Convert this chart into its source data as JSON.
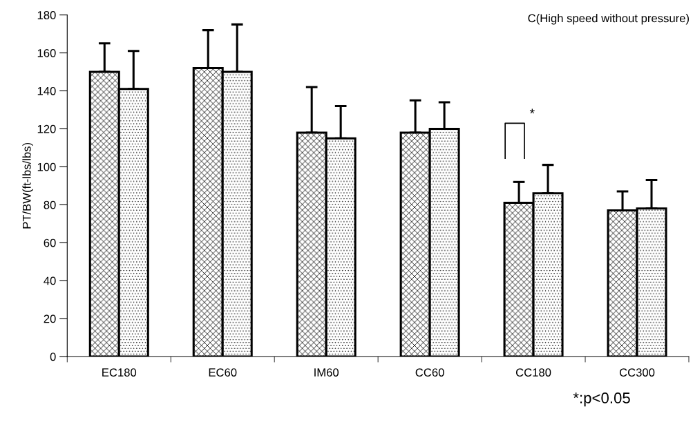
{
  "chart_data": {
    "type": "bar",
    "title": "C(High speed without pressure)",
    "ylabel": "PT/BW(ft-lbs/lbs)",
    "categories": [
      "EC180",
      "EC60",
      "IM60",
      "CC60",
      "CC180",
      "CC300"
    ],
    "series": [
      {
        "color": "#000000",
        "values": [
          150,
          152,
          118,
          118,
          81,
          77
        ],
        "errors": [
          [
            150,
            165
          ],
          [
            152,
            172
          ],
          [
            118,
            142
          ],
          [
            118,
            135
          ],
          [
            81,
            92
          ],
          [
            77,
            87
          ]
        ]
      },
      {
        "color": "#000000",
        "values": [
          141,
          150,
          115,
          120,
          86,
          78
        ],
        "errors": [
          [
            141,
            161
          ],
          [
            150,
            175
          ],
          [
            115,
            132
          ],
          [
            120,
            134
          ],
          [
            86,
            101
          ],
          [
            78,
            93
          ]
        ]
      }
    ],
    "ylim": [
      0,
      180
    ],
    "yticks": [
      0,
      20,
      40,
      60,
      80,
      100,
      120,
      140,
      160,
      180
    ],
    "grid": false,
    "legend": false,
    "annotations": [
      "*",
      "*:p<0.05"
    ]
  }
}
